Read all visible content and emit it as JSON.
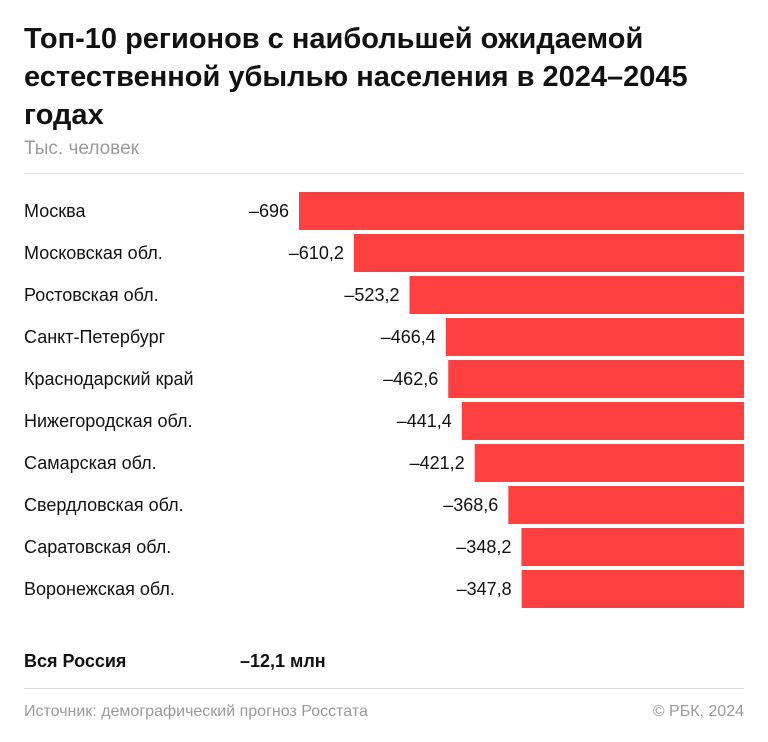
{
  "chart_data": {
    "type": "bar",
    "orientation": "horizontal",
    "title": "Топ-10 регионов с наибольшей ожидаемой естественной убылью населения в 2024–2045 годах",
    "subtitle": "Тыс. человек",
    "categories": [
      "Москва",
      "Московская обл.",
      "Ростовская обл.",
      "Санкт-Петербург",
      "Краснодарский край",
      "Нижегородская обл.",
      "Самарская обл.",
      "Свердловская обл.",
      "Саратовская обл.",
      "Воронежская обл."
    ],
    "values": [
      -696,
      -610.2,
      -523.2,
      -466.4,
      -462.6,
      -441.4,
      -421.2,
      -368.6,
      -348.2,
      -347.8
    ],
    "value_labels": [
      "–696",
      "–610,2",
      "–523,2",
      "–466,4",
      "–462,6",
      "–441,4",
      "–421,2",
      "–368,6",
      "–348,2",
      "–347,8"
    ],
    "bar_color": "#ff4040",
    "xlim": [
      -696,
      0
    ]
  },
  "total": {
    "label": "Вся Россия",
    "value": "–12,1 млн"
  },
  "footer": {
    "source": "Источник: демографический прогноз Росстата",
    "copyright": "© РБК, 2024"
  }
}
